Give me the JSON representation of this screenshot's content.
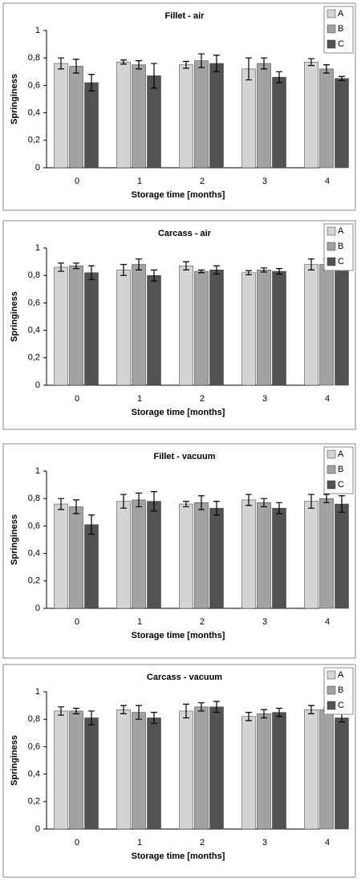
{
  "chart_data": [
    {
      "type": "bar",
      "title": "Fillet - air",
      "x_label": "Storage time [months]",
      "y_label": "Springiness",
      "categories": [
        "0",
        "1",
        "2",
        "3",
        "4"
      ],
      "ylim": [
        0,
        1
      ],
      "yticks": [
        0,
        {
          "value": 0.2,
          "label": "0,2"
        },
        {
          "value": 0.4,
          "label": "0,4"
        },
        {
          "value": 0.6,
          "label": "0,6"
        },
        {
          "value": 0.8,
          "label": "0,8"
        },
        1
      ],
      "series": [
        {
          "name": "A",
          "color": "#d4d4d4",
          "values": [
            0.76,
            0.77,
            0.75,
            0.72,
            0.77
          ],
          "errors": [
            0.04,
            0.015,
            0.025,
            0.08,
            0.025
          ]
        },
        {
          "name": "B",
          "color": "#a2a2a2",
          "values": [
            0.74,
            0.75,
            0.78,
            0.76,
            0.72
          ],
          "errors": [
            0.05,
            0.03,
            0.05,
            0.04,
            0.03
          ]
        },
        {
          "name": "C",
          "color": "#525252",
          "values": [
            0.62,
            0.67,
            0.76,
            0.66,
            0.65
          ],
          "errors": [
            0.06,
            0.09,
            0.06,
            0.04,
            0.015
          ]
        }
      ]
    },
    {
      "type": "bar",
      "title": "Carcass - air",
      "x_label": "Storage time [months]",
      "y_label": "Springiness",
      "categories": [
        "0",
        "1",
        "2",
        "3",
        "4"
      ],
      "ylim": [
        0,
        1
      ],
      "yticks": [
        0,
        {
          "value": 0.2,
          "label": "0,2"
        },
        {
          "value": 0.4,
          "label": "0,4"
        },
        {
          "value": 0.6,
          "label": "0,6"
        },
        {
          "value": 0.8,
          "label": "0,8"
        },
        1
      ],
      "series": [
        {
          "name": "A",
          "color": "#d4d4d4",
          "values": [
            0.86,
            0.84,
            0.87,
            0.82,
            0.88
          ],
          "errors": [
            0.03,
            0.04,
            0.03,
            0.015,
            0.04
          ]
        },
        {
          "name": "B",
          "color": "#a2a2a2",
          "values": [
            0.87,
            0.88,
            0.83,
            0.84,
            0.88
          ],
          "errors": [
            0.02,
            0.04,
            0.01,
            0.015,
            0.04
          ]
        },
        {
          "name": "C",
          "color": "#525252",
          "values": [
            0.82,
            0.8,
            0.84,
            0.83,
            0.89
          ],
          "errors": [
            0.05,
            0.04,
            0.03,
            0.02,
            0.02
          ]
        }
      ]
    },
    {
      "type": "bar",
      "title": "Fillet - vacuum",
      "x_label": "Storage time [months]",
      "y_label": "Springiness",
      "categories": [
        "0",
        "1",
        "2",
        "3",
        "4"
      ],
      "ylim": [
        0,
        1
      ],
      "yticks": [
        0,
        {
          "value": 0.2,
          "label": "0,2"
        },
        {
          "value": 0.4,
          "label": "0,4"
        },
        {
          "value": 0.6,
          "label": "0,6"
        },
        {
          "value": 0.8,
          "label": "0,8"
        },
        1
      ],
      "series": [
        {
          "name": "A",
          "color": "#d4d4d4",
          "values": [
            0.76,
            0.78,
            0.76,
            0.79,
            0.78
          ],
          "errors": [
            0.04,
            0.05,
            0.02,
            0.04,
            0.05
          ]
        },
        {
          "name": "B",
          "color": "#a2a2a2",
          "values": [
            0.74,
            0.79,
            0.77,
            0.77,
            0.8
          ],
          "errors": [
            0.05,
            0.05,
            0.05,
            0.03,
            0.03
          ]
        },
        {
          "name": "C",
          "color": "#525252",
          "values": [
            0.61,
            0.78,
            0.73,
            0.73,
            0.76
          ],
          "errors": [
            0.07,
            0.07,
            0.05,
            0.04,
            0.06
          ]
        }
      ]
    },
    {
      "type": "bar",
      "title": "Carcass - vacuum",
      "x_label": "Storage time [months]",
      "y_label": "Springiness",
      "categories": [
        "0",
        "1",
        "2",
        "3",
        "4"
      ],
      "ylim": [
        0,
        1
      ],
      "yticks": [
        0,
        {
          "value": 0.2,
          "label": "0,2"
        },
        {
          "value": 0.4,
          "label": "0,4"
        },
        {
          "value": 0.6,
          "label": "0,6"
        },
        {
          "value": 0.8,
          "label": "0,8"
        },
        1
      ],
      "series": [
        {
          "name": "A",
          "color": "#d4d4d4",
          "values": [
            0.86,
            0.87,
            0.86,
            0.82,
            0.87
          ],
          "errors": [
            0.03,
            0.03,
            0.05,
            0.03,
            0.03
          ]
        },
        {
          "name": "B",
          "color": "#a2a2a2",
          "values": [
            0.86,
            0.85,
            0.89,
            0.84,
            0.87
          ],
          "errors": [
            0.02,
            0.05,
            0.03,
            0.03,
            0.01
          ]
        },
        {
          "name": "C",
          "color": "#525252",
          "values": [
            0.81,
            0.81,
            0.89,
            0.85,
            0.81
          ],
          "errors": [
            0.05,
            0.04,
            0.04,
            0.03,
            0.03
          ]
        }
      ]
    }
  ]
}
